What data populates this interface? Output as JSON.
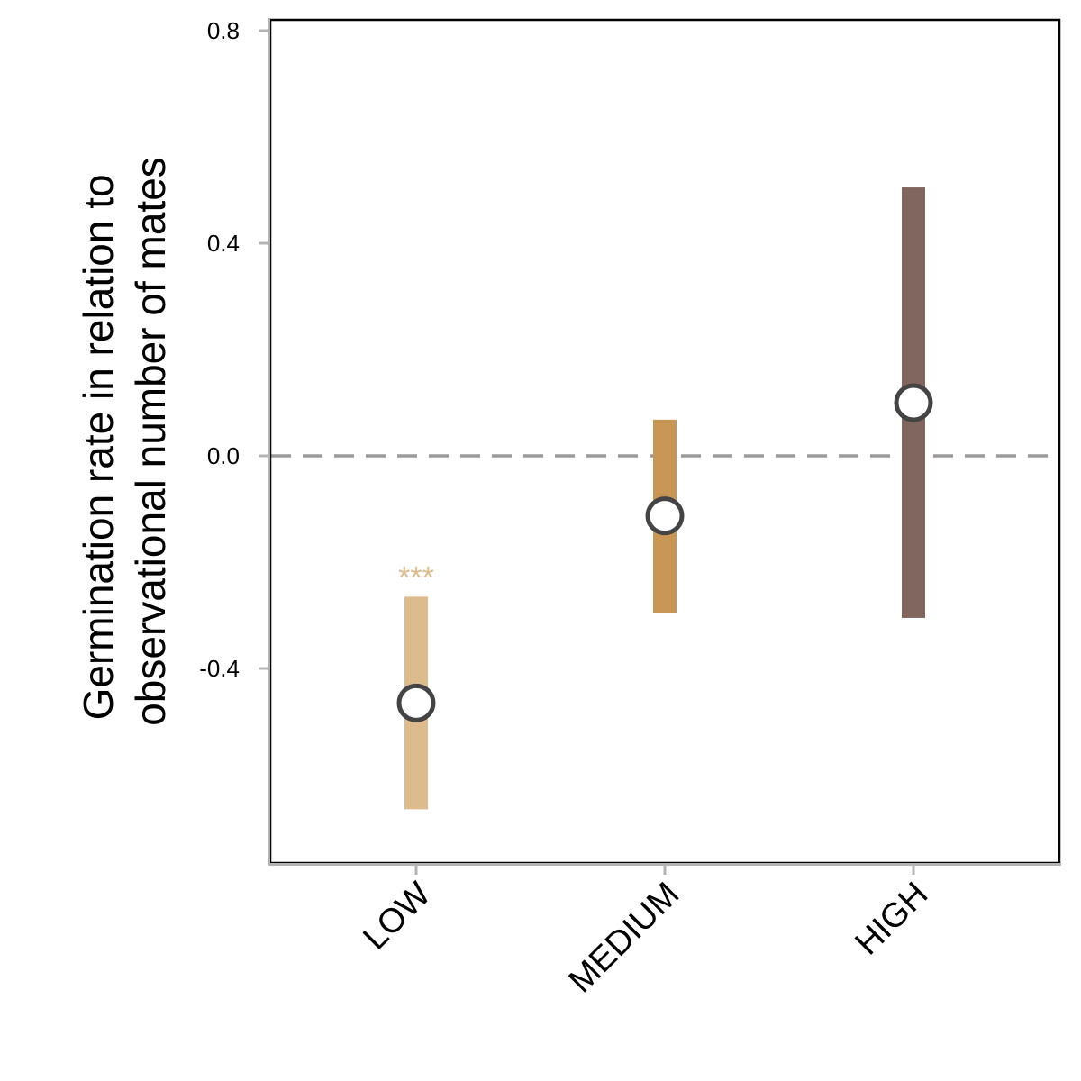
{
  "chart_data": {
    "type": "point-range",
    "ylabel_lines": [
      "Germination rate in relation to",
      "observational number of mates"
    ],
    "xlabel": "",
    "title": "",
    "categories": [
      "LOW",
      "MEDIUM",
      "HIGH"
    ],
    "estimates": [
      -0.465,
      -0.113,
      0.1
    ],
    "lower": [
      -0.665,
      -0.295,
      -0.305
    ],
    "upper": [
      -0.265,
      0.068,
      0.505
    ],
    "colors": [
      "#dcbb8d",
      "#c99755",
      "#80665e"
    ],
    "significance": [
      "***",
      "",
      ""
    ],
    "ylim": [
      -0.77,
      0.82
    ],
    "yticks": [
      -0.4,
      0.0,
      0.4,
      0.8
    ],
    "ytick_labels": [
      "-0.4",
      "0.0",
      "0.4",
      "0.8"
    ],
    "reference_line": 0.0,
    "grid": false
  }
}
